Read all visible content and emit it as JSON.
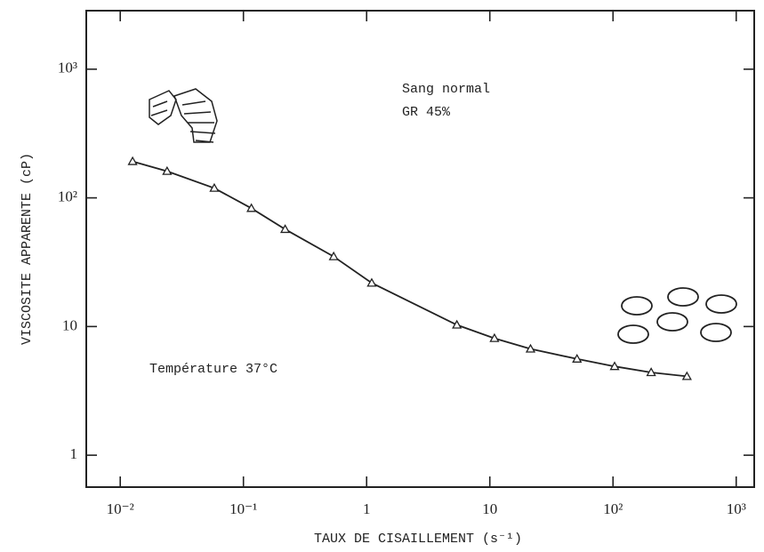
{
  "chart_data": {
    "type": "line",
    "x_label": "TAUX DE CISAILLEMENT (s⁻¹)",
    "y_label": "VISCOSITE APPARENTE (cP)",
    "annotations": [
      "Sang normal",
      "GR 45%",
      "Température 37°C"
    ],
    "log_x": true,
    "log_y": true,
    "xlim": [
      0.0053,
      1400
    ],
    "ylim": [
      0.565,
      2850
    ],
    "xticks": [
      {
        "value": 0.01,
        "label": "10⁻²"
      },
      {
        "value": 0.1,
        "label": "10⁻¹"
      },
      1,
      10,
      {
        "value": 100,
        "label": "10²"
      },
      {
        "value": 1000,
        "label": "10³"
      }
    ],
    "yticks": [
      1,
      10,
      {
        "value": 100,
        "label": "10²"
      },
      {
        "value": 1000,
        "label": "10³"
      }
    ],
    "series": [
      {
        "color": "#222222",
        "marker": "triangle",
        "x": [
          0.0126,
          0.024,
          0.058,
          0.116,
          0.218,
          0.54,
          1.1,
          5.4,
          10.9,
          21.4,
          51,
          103,
          204,
          398
        ],
        "values": [
          192,
          161,
          119,
          83,
          57,
          35,
          21.8,
          10.3,
          8.1,
          6.7,
          5.6,
          4.9,
          4.4,
          4.1
        ]
      }
    ]
  }
}
